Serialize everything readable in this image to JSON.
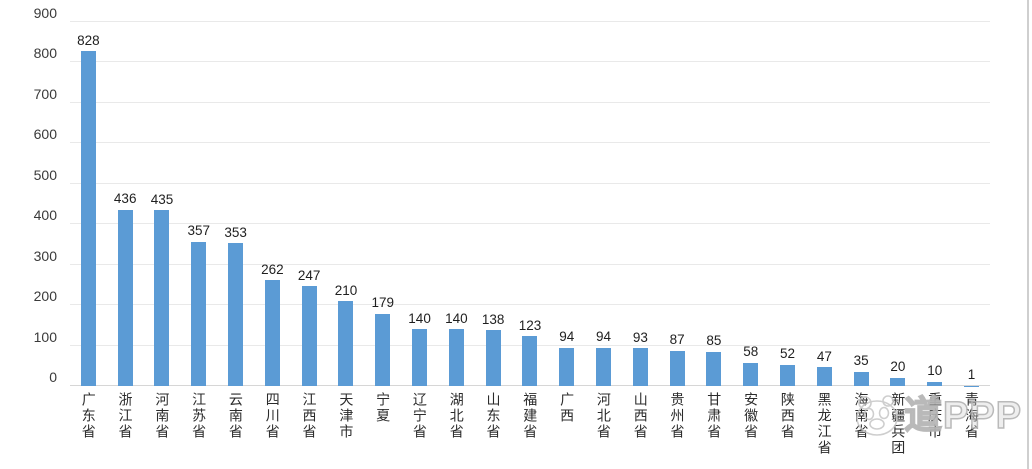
{
  "chart_data": {
    "type": "bar",
    "title": "",
    "xlabel": "",
    "ylabel": "",
    "categories": [
      "广东省",
      "浙江省",
      "河南省",
      "江苏省",
      "云南省",
      "四川省",
      "江西省",
      "天津市",
      "宁夏",
      "辽宁省",
      "湖北省",
      "山东省",
      "福建省",
      "广西",
      "河北省",
      "山西省",
      "贵州省",
      "甘肃省",
      "安徽省",
      "陕西省",
      "黑龙江省",
      "海南省",
      "新疆兵团",
      "重庆市",
      "青海省"
    ],
    "values": [
      828,
      436,
      435,
      357,
      353,
      262,
      247,
      210,
      179,
      140,
      140,
      138,
      123,
      94,
      94,
      93,
      87,
      85,
      58,
      52,
      47,
      35,
      20,
      10,
      1
    ],
    "ylim": [
      0,
      900
    ],
    "yticks": [
      0,
      100,
      200,
      300,
      400,
      500,
      600,
      700,
      800,
      900
    ],
    "grid": true,
    "legend_position": "none",
    "bar_color": "#5b9bd5",
    "value_labels_shown": true
  },
  "watermark": {
    "logo": "panda-logo",
    "text": "道PPP"
  },
  "colors": {
    "bar": "#5b9bd5",
    "gridline": "#e9e9e9",
    "baseline": "#d6d6d6",
    "axis_text": "#3a3a3a",
    "value_text": "#1f1f1f",
    "watermark": "#c4c4c4"
  }
}
